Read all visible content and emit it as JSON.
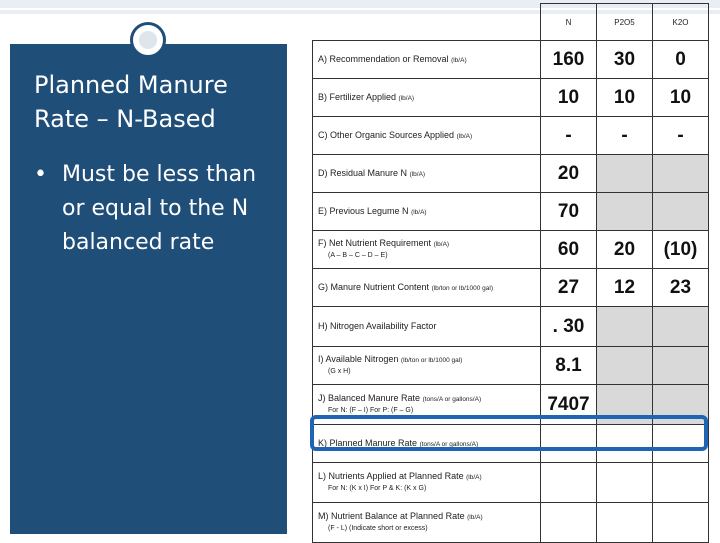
{
  "slide": {
    "title": "Planned Manure Rate – N-Based",
    "bullet": "Must be less than or equal to the N balanced rate",
    "bullet_marker": "•"
  },
  "table": {
    "headers": [
      "N",
      "P2O5",
      "K2O"
    ],
    "rows": [
      {
        "label": "A) Recommendation or Removal",
        "unit": "(lb/A)",
        "sub": "",
        "values": [
          "160",
          "30",
          "0"
        ]
      },
      {
        "label": "B) Fertilizer Applied",
        "unit": "(lb/A)",
        "sub": "",
        "values": [
          "10",
          "10",
          "10"
        ]
      },
      {
        "label": "C) Other Organic Sources Applied",
        "unit": "(lb/A)",
        "sub": "",
        "values": [
          "-",
          "-",
          "-"
        ]
      },
      {
        "label": "D) Residual Manure N",
        "unit": "(lb/A)",
        "sub": "",
        "values": [
          "20",
          "",
          ""
        ]
      },
      {
        "label": "E) Previous Legume N",
        "unit": "(lb/A)",
        "sub": "",
        "values": [
          "70",
          "",
          ""
        ]
      },
      {
        "label": "F) Net Nutrient Requirement",
        "unit": "(lb/A)",
        "sub": "(A – B – C – D – E)",
        "values": [
          "60",
          "20",
          "(10)"
        ]
      },
      {
        "label": "G) Manure Nutrient Content",
        "unit": "(lb/ton or lb/1000 gal)",
        "sub": "",
        "values": [
          "27",
          "12",
          "23"
        ]
      },
      {
        "label": "H) Nitrogen Availability Factor",
        "unit": "",
        "sub": "",
        "values": [
          ". 30",
          "",
          ""
        ]
      },
      {
        "label": "I) Available Nitrogen",
        "unit": "(lb/ton or lb/1000 gal)",
        "sub": "(G x H)",
        "values": [
          "8.1",
          "",
          ""
        ]
      },
      {
        "label": "J) Balanced Manure Rate",
        "unit": "(tons/A or gallons/A)",
        "sub": "For N: (F – I)    For P: (F – G)",
        "values": [
          "7407",
          "",
          ""
        ]
      },
      {
        "label": "K) Planned Manure Rate",
        "unit": "(tons/A or gallons/A)",
        "sub": "",
        "values": [
          "",
          "",
          ""
        ]
      },
      {
        "label": "L) Nutrients Applied at Planned Rate",
        "unit": "(lb/A)",
        "sub": "For N: (K x I)   For P & K: (K x G)",
        "values": [
          "",
          "",
          ""
        ]
      },
      {
        "label": "M) Nutrient Balance at Planned Rate",
        "unit": "(lb/A)",
        "sub": "(F - L)    (Indicate short or excess)",
        "values": [
          "",
          "",
          ""
        ]
      }
    ]
  }
}
